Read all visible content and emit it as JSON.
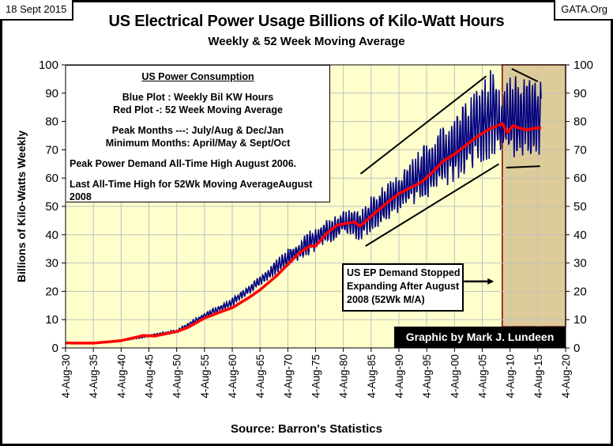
{
  "header": {
    "date": "18 Sept 2015",
    "site": "GATA.Org",
    "title": "US Electrical Power Usage Billions of Kilo-Watt Hours",
    "subtitle": "Weekly & 52 Week Moving Average"
  },
  "info_box": {
    "heading": " US Power Consumption",
    "lines": [
      "Blue  Plot  : Weekly Bil KW Hours",
      "Red Plot -: 52 Week Moving Average",
      "Peak Months ---: July/Aug & Dec/Jan",
      "Minimum Months: April/May & Sept/Oct",
      "Peak Power Demand All-Time  High August 2006.",
      "Last All-Time  High for 52Wk Moving AverageAugust 2008"
    ]
  },
  "annotation": {
    "text_lines": [
      "US EP  Demand Stopped",
      "Expanding After August",
      "2008 (52Wk M/A)"
    ]
  },
  "credit": "Graphic by Mark J. Lundeen",
  "source": "Source: Barron's Statistics",
  "colors": {
    "weekly": "#000080",
    "moving_average": "#ff0000",
    "plot_bg": "#ffffcc",
    "highlight_bg": "#ddcc99",
    "highlight_border": "#800000",
    "grid": "#c0c0c0"
  },
  "chart_data": {
    "type": "line",
    "title": "US Electrical Power Usage Billions of Kilo-Watt Hours",
    "subtitle": "Weekly & 52 Week Moving Average",
    "xlabel": "",
    "ylabel": "Billions of Kilo-Watts Weekly",
    "ylim": [
      0,
      100
    ],
    "xlim": [
      1930,
      2020
    ],
    "grid": true,
    "y_ticks": [
      0,
      10,
      20,
      30,
      40,
      50,
      60,
      70,
      80,
      90,
      100
    ],
    "y_tick_labels": [
      "0",
      "10",
      "20",
      "30",
      "40",
      "50",
      "60",
      "70",
      "80",
      "90",
      "100"
    ],
    "x_tick_labels": [
      "4-Aug-30",
      "4-Aug-35",
      "4-Aug-40",
      "4-Aug-45",
      "4-Aug-50",
      "4-Aug-55",
      "4-Aug-60",
      "4-Aug-65",
      "4-Aug-70",
      "4-Aug-75",
      "4-Aug-80",
      "4-Aug-85",
      "4-Aug-90",
      "4-Aug-95",
      "4-Aug-00",
      "4-Aug-05",
      "4-Aug-10",
      "4-Aug-15",
      "4-Aug-20"
    ],
    "series": [
      {
        "name": "Weekly Bil KW Hours (approx. seasonal envelope)",
        "x": [
          1930,
          1935,
          1940,
          1945,
          1950,
          1955,
          1960,
          1965,
          1970,
          1975,
          1980,
          1983,
          1985,
          1990,
          1995,
          2000,
          2005,
          2006.6,
          2008.6,
          2010,
          2012,
          2015.6
        ],
        "low": [
          1.6,
          1.6,
          2.4,
          3.9,
          5.4,
          10.5,
          15,
          22,
          29,
          34,
          40,
          38,
          41,
          48,
          53,
          59,
          66,
          67,
          70,
          67,
          68,
          68
        ],
        "high": [
          1.9,
          1.9,
          2.8,
          4.6,
          6.5,
          12.3,
          17.5,
          25.5,
          35,
          43,
          49,
          48,
          54,
          61,
          73,
          82,
          93,
          99,
          88,
          97,
          95,
          94
        ]
      },
      {
        "name": "52 Week Moving Average",
        "x": [
          1930,
          1932,
          1935,
          1938,
          1940,
          1943,
          1944,
          1946,
          1948,
          1950,
          1952,
          1955,
          1958,
          1960,
          1963,
          1965,
          1968,
          1970,
          1972,
          1974,
          1975,
          1977,
          1979,
          1980,
          1982,
          1983,
          1985,
          1988,
          1990,
          1992,
          1994,
          1996,
          1998,
          2000,
          2002,
          2004,
          2006,
          2008.6,
          2009.5,
          2010.5,
          2012,
          2013,
          2014,
          2015.6
        ],
        "y": [
          1.8,
          1.7,
          1.7,
          2.2,
          2.6,
          3.9,
          4.4,
          4.2,
          5.0,
          5.8,
          7.2,
          10.5,
          12.8,
          14.2,
          17.8,
          20.5,
          25.5,
          29.5,
          33.5,
          36.0,
          36.0,
          40.5,
          43.5,
          43.8,
          44.5,
          43.0,
          46.5,
          51.5,
          54.5,
          56.5,
          58.5,
          62.0,
          66.0,
          68.5,
          71.5,
          74.5,
          77.0,
          79.3,
          76.0,
          78.5,
          77.5,
          77.0,
          77.5,
          77.8
        ]
      }
    ],
    "annotations": [
      {
        "type": "shaded_region",
        "x": [
          2008.6,
          2020
        ],
        "y": [
          7.5,
          100
        ]
      },
      {
        "type": "trend_line",
        "label": "upper channel",
        "x": [
          1983.1,
          2005.7
        ],
        "y": [
          61.5,
          96.0
        ]
      },
      {
        "type": "trend_line",
        "label": "lower channel",
        "x": [
          1984.0,
          2008.0
        ],
        "y": [
          36.0,
          65.0
        ]
      },
      {
        "type": "trend_line",
        "label": "upper plateau",
        "x": [
          2010.3,
          2015.0
        ],
        "y": [
          98.6,
          94.1
        ]
      },
      {
        "type": "trend_line",
        "label": "lower plateau",
        "x": [
          2009.3,
          2015.4
        ],
        "y": [
          63.7,
          64.2
        ]
      },
      {
        "type": "arrow",
        "label": "annotation pointer",
        "x": [
          2001.7,
          2007.1
        ],
        "y": [
          23.5,
          23.5
        ]
      }
    ]
  }
}
